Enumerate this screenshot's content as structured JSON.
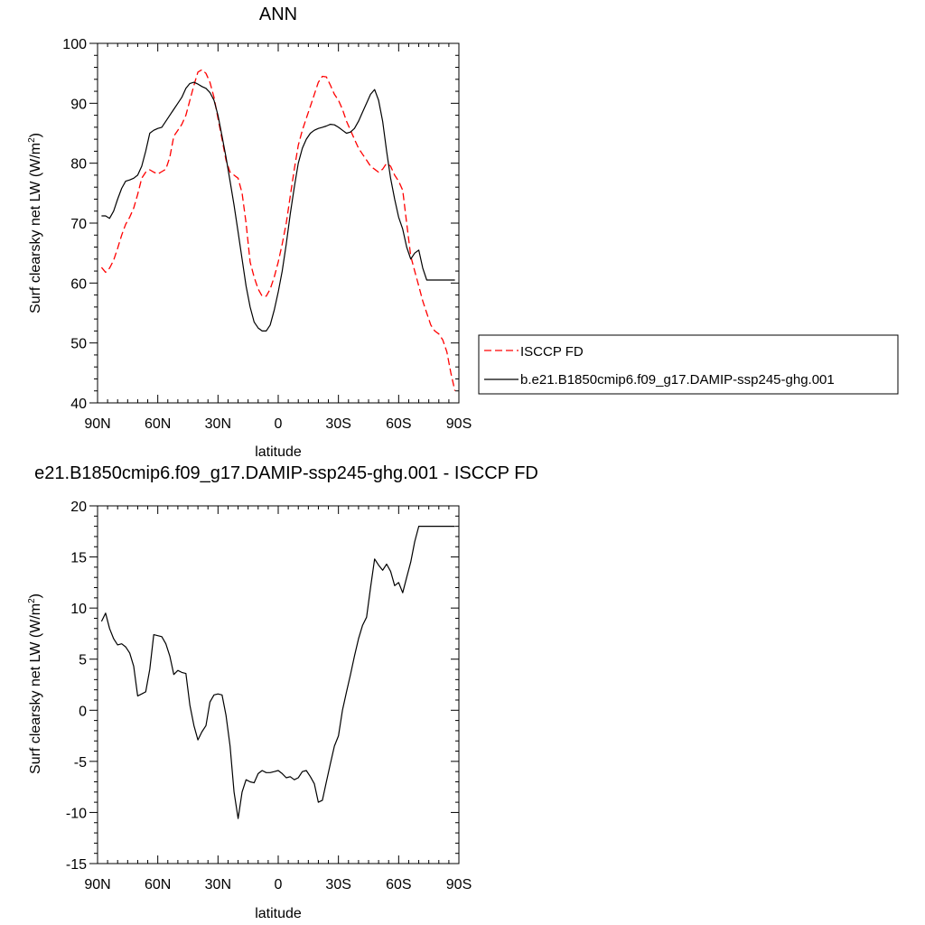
{
  "chart_data": [
    {
      "type": "line",
      "title": "ANN",
      "xlabel": "latitude",
      "ylabel": "Surf clearsky net LW (W/m",
      "ylabel_sup": "2",
      "ylabel_end": ")",
      "xlim": [
        90,
        -90
      ],
      "ylim": [
        40,
        100
      ],
      "x_ticks": [
        90,
        60,
        30,
        0,
        -30,
        -60,
        -90
      ],
      "x_tick_labels": [
        "90N",
        "60N",
        "30N",
        "0",
        "30S",
        "60S",
        "90S"
      ],
      "y_ticks": [
        40,
        50,
        60,
        70,
        80,
        90,
        100
      ],
      "y_tick_labels": [
        "40",
        "50",
        "60",
        "70",
        "80",
        "90",
        "100"
      ],
      "legend": {
        "placement": "right",
        "entries": [
          "ISCCP FD",
          "b.e21.B1850cmip6.f09_g17.DAMIP-ssp245-ghg.001"
        ]
      },
      "series": [
        {
          "name": "ISCCP FD",
          "color": "#ff0000",
          "dash": "dashed",
          "x": [
            88,
            86,
            84,
            82,
            80,
            78,
            76,
            74,
            72,
            70,
            68,
            66,
            64,
            62,
            60,
            58,
            56,
            54,
            52,
            50,
            48,
            46,
            44,
            42,
            40,
            38,
            36,
            34,
            32,
            30,
            28,
            26,
            24,
            22,
            20,
            18,
            16,
            14,
            12,
            10,
            8,
            6,
            4,
            2,
            0,
            -2,
            -4,
            -6,
            -8,
            -10,
            -12,
            -14,
            -16,
            -18,
            -20,
            -22,
            -24,
            -26,
            -28,
            -30,
            -32,
            -34,
            -36,
            -38,
            -40,
            -42,
            -44,
            -46,
            -48,
            -50,
            -52,
            -54,
            -56,
            -58,
            -60,
            -62,
            -64,
            -66,
            -68,
            -70,
            -72,
            -74,
            -76,
            -78,
            -80,
            -82,
            -84,
            -86,
            -88
          ],
          "y": [
            62.6,
            61.8,
            62.5,
            63.8,
            65.8,
            68.0,
            69.8,
            71.0,
            72.5,
            74.8,
            77.5,
            78.5,
            78.9,
            78.5,
            78.2,
            78.6,
            79.0,
            81.0,
            84.5,
            85.5,
            86.5,
            88.0,
            90.5,
            93.0,
            95.2,
            95.6,
            95.0,
            93.5,
            91.0,
            87.5,
            84.0,
            80.5,
            78.5,
            78.0,
            77.5,
            75.0,
            70.0,
            63.5,
            61.0,
            59.0,
            57.8,
            57.8,
            59.0,
            61.0,
            63.5,
            66.5,
            70.0,
            74.5,
            79.0,
            83.0,
            85.5,
            87.5,
            89.5,
            91.5,
            93.5,
            94.5,
            94.4,
            93.0,
            91.5,
            90.5,
            89.0,
            87.0,
            85.5,
            84.0,
            82.5,
            81.5,
            80.5,
            79.5,
            79.0,
            78.5,
            79.0,
            80.0,
            79.5,
            78.0,
            77.0,
            75.5,
            70.0,
            64.5,
            62.0,
            59.5,
            57.0,
            55.0,
            53.0,
            52.0,
            51.5,
            50.5,
            48.5,
            45.0,
            42.0
          ]
        },
        {
          "name": "b.e21.B1850cmip6.f09_g17.DAMIP-ssp245-ghg.001",
          "color": "#000000",
          "dash": "solid",
          "x": [
            88,
            86,
            84,
            82,
            80,
            78,
            76,
            74,
            72,
            70,
            68,
            66,
            64,
            62,
            60,
            58,
            56,
            54,
            52,
            50,
            48,
            46,
            44,
            42,
            40,
            38,
            36,
            34,
            32,
            30,
            28,
            26,
            24,
            22,
            20,
            18,
            16,
            14,
            12,
            10,
            8,
            6,
            4,
            2,
            0,
            -2,
            -4,
            -6,
            -8,
            -10,
            -12,
            -14,
            -16,
            -18,
            -20,
            -22,
            -24,
            -26,
            -28,
            -30,
            -32,
            -34,
            -36,
            -38,
            -40,
            -42,
            -44,
            -46,
            -48,
            -50,
            -52,
            -54,
            -56,
            -58,
            -60,
            -62,
            -64,
            -66,
            -68,
            -70,
            -72,
            -74,
            -76,
            -78,
            -80,
            -82,
            -84,
            -86,
            -88
          ],
          "y": [
            71.2,
            71.2,
            70.8,
            72.0,
            74.0,
            75.8,
            77.0,
            77.2,
            77.5,
            78.0,
            79.5,
            82.0,
            85.0,
            85.5,
            85.8,
            86.0,
            87.0,
            88.0,
            89.0,
            90.0,
            91.0,
            92.5,
            93.3,
            93.5,
            93.2,
            92.8,
            92.5,
            91.8,
            90.5,
            88.0,
            84.5,
            81.0,
            77.0,
            73.0,
            68.5,
            64.0,
            59.5,
            56.0,
            53.5,
            52.5,
            52.0,
            52.0,
            53.0,
            55.5,
            58.5,
            62.0,
            66.5,
            71.5,
            76.0,
            80.0,
            82.5,
            84.0,
            85.0,
            85.5,
            85.8,
            86.0,
            86.2,
            86.5,
            86.4,
            86.0,
            85.5,
            85.0,
            85.2,
            85.8,
            87.0,
            88.5,
            90.0,
            91.5,
            92.3,
            90.5,
            87.0,
            82.0,
            77.5,
            74.0,
            71.0,
            69.0,
            66.0,
            64.0,
            65.0,
            65.5,
            62.5,
            60.5,
            60.5,
            60.5,
            60.5,
            60.5,
            60.5,
            60.5,
            60.5
          ]
        }
      ]
    },
    {
      "type": "line",
      "title": "e21.B1850cmip6.f09_g17.DAMIP-ssp245-ghg.001 - ISCCP FD",
      "xlabel": "latitude",
      "ylabel": "Surf clearsky net LW (W/m",
      "ylabel_sup": "2",
      "ylabel_end": ")",
      "xlim": [
        90,
        -90
      ],
      "ylim": [
        -15,
        20
      ],
      "x_ticks": [
        90,
        60,
        30,
        0,
        -30,
        -60,
        -90
      ],
      "x_tick_labels": [
        "90N",
        "60N",
        "30N",
        "0",
        "30S",
        "60S",
        "90S"
      ],
      "y_ticks": [
        -15,
        -10,
        -5,
        0,
        5,
        10,
        15,
        20
      ],
      "y_tick_labels": [
        "-15",
        "-10",
        "-5",
        "0",
        "5",
        "10",
        "15",
        "20"
      ],
      "series": [
        {
          "color": "#000000",
          "dash": "solid",
          "x": [
            88,
            86,
            84,
            82,
            80,
            78,
            76,
            74,
            72,
            70,
            68,
            66,
            64,
            62,
            60,
            58,
            56,
            54,
            52,
            50,
            48,
            46,
            44,
            42,
            40,
            38,
            36,
            34,
            32,
            30,
            28,
            26,
            24,
            22,
            20,
            18,
            16,
            14,
            12,
            10,
            8,
            6,
            4,
            2,
            0,
            -2,
            -4,
            -6,
            -8,
            -10,
            -12,
            -14,
            -16,
            -18,
            -20,
            -22,
            -24,
            -26,
            -28,
            -30,
            -32,
            -34,
            -36,
            -38,
            -40,
            -42,
            -44,
            -46,
            -48,
            -50,
            -52,
            -54,
            -56,
            -58,
            -60,
            -62,
            -64,
            -66,
            -68,
            -70,
            -72,
            -74,
            -76,
            -78,
            -80,
            -82,
            -84,
            -86,
            -88
          ],
          "y": [
            8.7,
            9.5,
            8.0,
            7.0,
            6.4,
            6.5,
            6.2,
            5.6,
            4.3,
            1.4,
            1.6,
            1.8,
            4.0,
            7.4,
            7.3,
            7.2,
            6.5,
            5.3,
            3.5,
            3.9,
            3.7,
            3.6,
            0.5,
            -1.5,
            -2.9,
            -2.1,
            -1.5,
            0.8,
            1.5,
            1.6,
            1.5,
            -0.5,
            -3.5,
            -8.0,
            -10.6,
            -8.0,
            -6.8,
            -7.0,
            -7.1,
            -6.2,
            -5.9,
            -6.1,
            -6.1,
            -6.0,
            -5.9,
            -6.2,
            -6.6,
            -6.5,
            -6.8,
            -6.6,
            -6.0,
            -5.9,
            -6.5,
            -7.2,
            -9.0,
            -8.8,
            -7.0,
            -5.2,
            -3.5,
            -2.5,
            0.0,
            1.8,
            3.5,
            5.3,
            7.0,
            8.3,
            9.1,
            12.0,
            14.8,
            14.2,
            13.7,
            14.3,
            13.6,
            12.2,
            12.5,
            11.5,
            13.0,
            14.5,
            16.5,
            18.0,
            18.0,
            18.0,
            18.0,
            18.0,
            18.0,
            18.0,
            18.0,
            18.0,
            18.0
          ]
        }
      ]
    }
  ]
}
